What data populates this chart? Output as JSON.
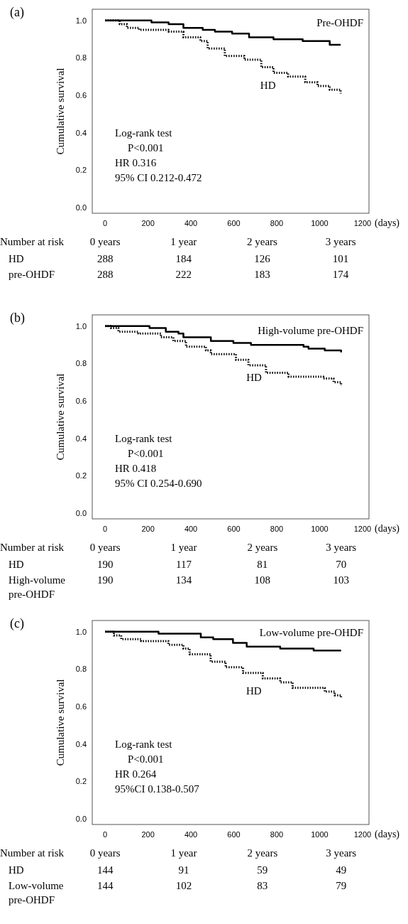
{
  "chart_data": [
    {
      "type": "step",
      "title": "(a)",
      "ylabel": "Cumulative survival",
      "xlabel": "(days)",
      "xlim": [
        -60,
        1230
      ],
      "ylim": [
        -0.03,
        1.06
      ],
      "xticks": [
        0,
        200,
        400,
        600,
        800,
        1000,
        1200
      ],
      "yticks": [
        {
          "value": 0,
          "label": "0.0"
        },
        {
          "value": 0.2,
          "label": "0.2"
        },
        {
          "value": 0.4,
          "label": "0.4"
        },
        {
          "value": 0.6,
          "label": "0.6"
        },
        {
          "value": 0.8,
          "label": "0.8"
        },
        {
          "value": 1,
          "label": "1.0"
        }
      ],
      "series": [
        {
          "name": "Pre-OHDF",
          "color": "#000000",
          "line_style": "solid",
          "x": [
            0,
            216,
            296,
            365,
            455,
            512,
            592,
            671,
            785,
            921,
            1047,
            1098
          ],
          "values": [
            1.0,
            0.99,
            0.98,
            0.96,
            0.95,
            0.94,
            0.93,
            0.91,
            0.9,
            0.89,
            0.87,
            0.87
          ]
        },
        {
          "name": "HD",
          "color": "#000000",
          "line_style": "dotted",
          "x": [
            0,
            68,
            102,
            159,
            296,
            365,
            444,
            478,
            558,
            649,
            728,
            785,
            853,
            933,
            990,
            1047,
            1098
          ],
          "values": [
            1.0,
            0.98,
            0.96,
            0.95,
            0.94,
            0.91,
            0.89,
            0.85,
            0.81,
            0.79,
            0.75,
            0.72,
            0.7,
            0.67,
            0.65,
            0.63,
            0.61
          ]
        }
      ],
      "annotations": [
        "Log-rank test",
        "P<0.001",
        "HR 0.316",
        "95% CI 0.212-0.472",
        "Number at risk",
        "0 years",
        "1 year",
        "2 years",
        "3 years",
        "HD",
        "288",
        "184",
        "126",
        "101",
        "pre-OHDF",
        "288",
        "222",
        "183",
        "174"
      ]
    },
    {
      "type": "step",
      "title": "(b)",
      "ylabel": "Cumulative survival",
      "xlabel": "(days)",
      "xlim": [
        -60,
        1230
      ],
      "ylim": [
        -0.03,
        1.06
      ],
      "xticks": [
        0,
        200,
        400,
        600,
        800,
        1000,
        1200
      ],
      "yticks": [
        {
          "value": 0,
          "label": "0.0"
        },
        {
          "value": 0.2,
          "label": "0.2"
        },
        {
          "value": 0.4,
          "label": "0.4"
        },
        {
          "value": 0.6,
          "label": "0.6"
        },
        {
          "value": 0.8,
          "label": "0.8"
        },
        {
          "value": 1,
          "label": "1.0"
        }
      ],
      "series": [
        {
          "name": "High-volume pre-OHDF",
          "color": "#000000",
          "line_style": "solid",
          "x": [
            0,
            132,
            207,
            283,
            342,
            365,
            493,
            598,
            680,
            925,
            948,
            1024,
            1100
          ],
          "values": [
            1.0,
            1.0,
            0.99,
            0.97,
            0.96,
            0.94,
            0.92,
            0.91,
            0.9,
            0.89,
            0.88,
            0.87,
            0.86
          ]
        },
        {
          "name": "HD",
          "color": "#000000",
          "line_style": "dotted",
          "x": [
            0,
            27,
            62,
            155,
            260,
            318,
            377,
            470,
            493,
            610,
            668,
            750,
            855,
            1018,
            1065,
            1100
          ],
          "values": [
            1.0,
            0.99,
            0.97,
            0.96,
            0.94,
            0.92,
            0.89,
            0.87,
            0.85,
            0.82,
            0.79,
            0.75,
            0.73,
            0.72,
            0.7,
            0.68
          ]
        }
      ],
      "annotations": [
        "Log-rank test",
        "P<0.001",
        "HR 0.418",
        "95% CI 0.254-0.690",
        "Number at risk",
        "0 years",
        "1 year",
        "2 years",
        "3 years",
        "HD",
        "190",
        "117",
        "81",
        "70",
        "High-volume pre-OHDF",
        "190",
        "134",
        "108",
        "103"
      ]
    },
    {
      "type": "step",
      "title": "(c)",
      "ylabel": "Cumulative survival",
      "xlabel": "(days)",
      "xlim": [
        -60,
        1230
      ],
      "ylim": [
        -0.03,
        1.06
      ],
      "xticks": [
        0,
        200,
        400,
        600,
        800,
        1000,
        1200
      ],
      "yticks": [
        {
          "value": 0,
          "label": "0.0"
        },
        {
          "value": 0.2,
          "label": "0.2"
        },
        {
          "value": 0.4,
          "label": "0.4"
        },
        {
          "value": 0.6,
          "label": "0.6"
        },
        {
          "value": 0.8,
          "label": "0.8"
        },
        {
          "value": 1,
          "label": "1.0"
        }
      ],
      "series": [
        {
          "name": "Low-volume pre-OHDF",
          "color": "#000000",
          "line_style": "solid",
          "x": [
            0,
            249,
            446,
            504,
            596,
            660,
            816,
            972,
            1100
          ],
          "values": [
            1.0,
            0.99,
            0.97,
            0.96,
            0.94,
            0.92,
            0.91,
            0.9,
            0.9
          ]
        },
        {
          "name": "HD",
          "color": "#000000",
          "line_style": "dotted",
          "x": [
            0,
            12,
            41,
            75,
            168,
            295,
            365,
            394,
            492,
            562,
            643,
            735,
            816,
            874,
            1024,
            1070,
            1100
          ],
          "values": [
            1.0,
            1.0,
            0.98,
            0.96,
            0.95,
            0.93,
            0.91,
            0.88,
            0.84,
            0.81,
            0.78,
            0.75,
            0.73,
            0.7,
            0.68,
            0.66,
            0.65
          ]
        }
      ],
      "annotations": [
        "Log-rank test",
        "P<0.001",
        "HR 0.264",
        "95%CI 0.138-0.507",
        "Number at risk",
        "0 years",
        "1 year",
        "2 years",
        "3 years",
        "HD",
        "144",
        "91",
        "59",
        "49",
        "Low-volume pre-OHDF",
        "144",
        "102",
        "83",
        "79"
      ]
    }
  ]
}
